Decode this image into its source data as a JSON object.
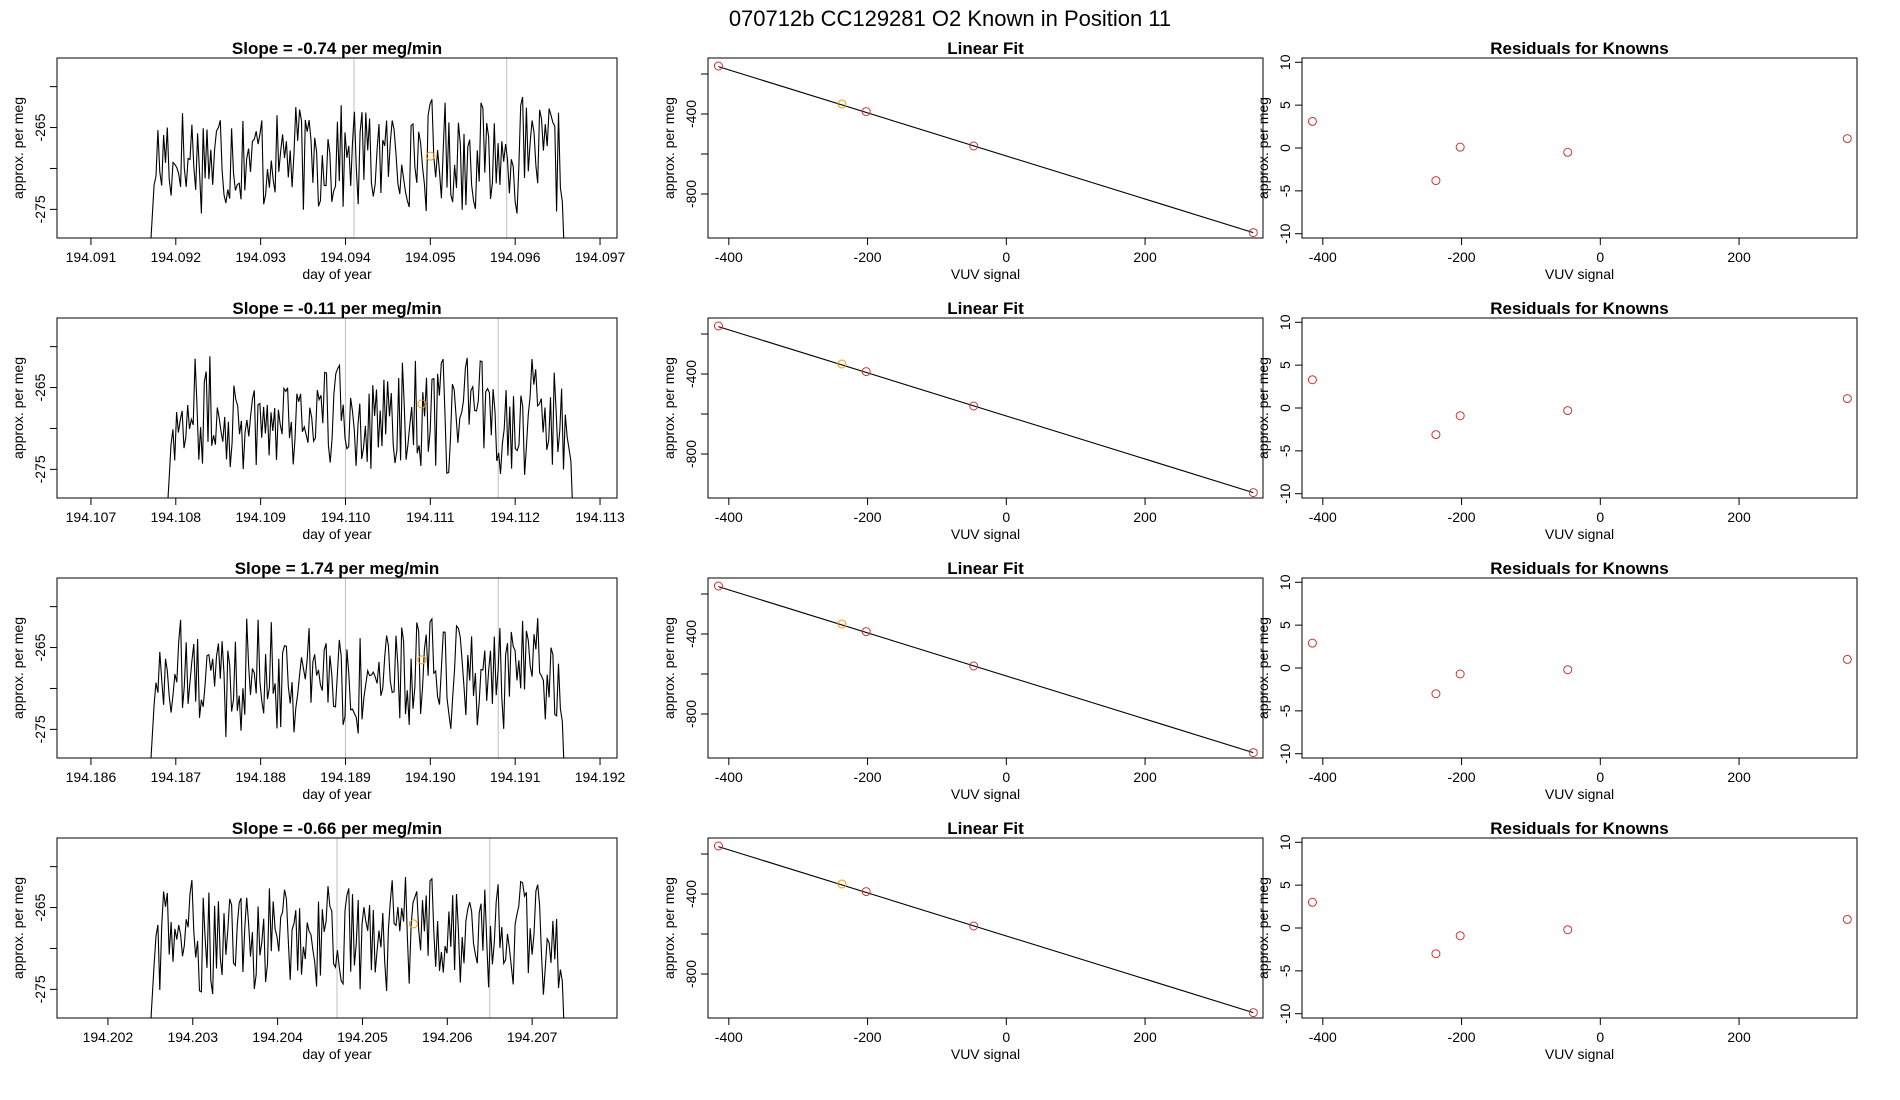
{
  "title": "070712b      CC129281    O2 Known in Position  11",
  "colors": {
    "trace": "#000000",
    "vline": "#bfbfbf",
    "highlight": "#ff9900",
    "fit_point": "#cd3333",
    "residual_point": "#cd3333"
  },
  "chart_data": [
    {
      "type": "line",
      "row": 1,
      "title": "Slope =  -0.74  per meg/min",
      "xlabel": "day of year",
      "ylabel": "approx. per meg",
      "xlim": [
        194.0906,
        194.0972
      ],
      "ylim": [
        -278.5,
        -256.5
      ],
      "xticks": [
        "194.091",
        "194.092",
        "194.093",
        "194.094",
        "194.095",
        "194.096",
        "194.097"
      ],
      "xtick_values": [
        194.091,
        194.092,
        194.093,
        194.094,
        194.095,
        194.096,
        194.097
      ],
      "yticks": [
        "-275",
        "-265"
      ],
      "ytick_values": [
        -275,
        -265
      ],
      "vlines": [
        194.0941,
        194.0959
      ],
      "highlight_point": {
        "x": 194.095,
        "y": -268.5
      },
      "series_start": 194.0917,
      "series_end": 194.0966
    },
    {
      "type": "line",
      "row": 1,
      "title": "Linear Fit",
      "xlabel": "VUV signal",
      "ylabel": "approx. per meg",
      "xlim": [
        -430,
        370
      ],
      "ylim": [
        -1020,
        -120
      ],
      "xticks": [
        "-400",
        "-200",
        "0",
        "200"
      ],
      "xtick_values": [
        -400,
        -200,
        0,
        200
      ],
      "yticks": [
        "-800",
        "-400"
      ],
      "ytick_values": [
        -800,
        -400
      ],
      "points": [
        {
          "x": -415,
          "y": -160
        },
        {
          "x": -237,
          "y": -350,
          "highlight": true
        },
        {
          "x": -202,
          "y": -388
        },
        {
          "x": -47,
          "y": -560
        },
        {
          "x": 356,
          "y": -993
        }
      ],
      "fit_line": [
        [
          -415,
          -163
        ],
        [
          356,
          -993
        ]
      ]
    },
    {
      "type": "scatter",
      "row": 1,
      "title": "Residuals for Knowns",
      "xlabel": "VUV signal",
      "ylabel": "approx. per meg",
      "xlim": [
        -430,
        370
      ],
      "ylim": [
        -10.5,
        10.5
      ],
      "xticks": [
        "-400",
        "-200",
        "0",
        "200"
      ],
      "xtick_values": [
        -400,
        -200,
        0,
        200
      ],
      "yticks": [
        "-10",
        "-5",
        "0",
        "5",
        "10"
      ],
      "ytick_values": [
        -10,
        -5,
        0,
        5,
        10
      ],
      "points": [
        {
          "x": -415,
          "y": 3.1
        },
        {
          "x": -237,
          "y": -3.8
        },
        {
          "x": -202,
          "y": 0.1
        },
        {
          "x": -47,
          "y": -0.5
        },
        {
          "x": 356,
          "y": 1.1
        }
      ]
    },
    {
      "type": "line",
      "row": 2,
      "title": "Slope =  -0.11  per meg/min",
      "xlabel": "day of year",
      "ylabel": "approx. per meg",
      "xlim": [
        194.1066,
        194.1132
      ],
      "ylim": [
        -278.5,
        -256.5
      ],
      "xticks": [
        "194.107",
        "194.108",
        "194.109",
        "194.110",
        "194.111",
        "194.112",
        "194.113"
      ],
      "xtick_values": [
        194.107,
        194.108,
        194.109,
        194.11,
        194.111,
        194.112,
        194.113
      ],
      "yticks": [
        "-275",
        "-265"
      ],
      "ytick_values": [
        -275,
        -265
      ],
      "vlines": [
        194.11,
        194.1118
      ],
      "highlight_point": {
        "x": 194.1109,
        "y": -267
      },
      "series_start": 194.1079,
      "series_end": 194.1127
    },
    {
      "type": "line",
      "row": 2,
      "title": "Linear Fit",
      "xlabel": "VUV signal",
      "ylabel": "approx. per meg",
      "xlim": [
        -430,
        370
      ],
      "ylim": [
        -1020,
        -120
      ],
      "xticks": [
        "-400",
        "-200",
        "0",
        "200"
      ],
      "xtick_values": [
        -400,
        -200,
        0,
        200
      ],
      "yticks": [
        "-800",
        "-400"
      ],
      "ytick_values": [
        -800,
        -400
      ],
      "points": [
        {
          "x": -415,
          "y": -160
        },
        {
          "x": -237,
          "y": -350,
          "highlight": true
        },
        {
          "x": -202,
          "y": -388
        },
        {
          "x": -47,
          "y": -560
        },
        {
          "x": 356,
          "y": -993
        }
      ],
      "fit_line": [
        [
          -415,
          -163
        ],
        [
          356,
          -993
        ]
      ]
    },
    {
      "type": "scatter",
      "row": 2,
      "title": "Residuals for Knowns",
      "xlabel": "VUV signal",
      "ylabel": "approx. per meg",
      "xlim": [
        -430,
        370
      ],
      "ylim": [
        -10.5,
        10.5
      ],
      "xticks": [
        "-400",
        "-200",
        "0",
        "200"
      ],
      "xtick_values": [
        -400,
        -200,
        0,
        200
      ],
      "yticks": [
        "-10",
        "-5",
        "0",
        "5",
        "10"
      ],
      "ytick_values": [
        -10,
        -5,
        0,
        5,
        10
      ],
      "points": [
        {
          "x": -415,
          "y": 3.3
        },
        {
          "x": -237,
          "y": -3.1
        },
        {
          "x": -202,
          "y": -0.9
        },
        {
          "x": -47,
          "y": -0.3
        },
        {
          "x": 356,
          "y": 1.1
        }
      ]
    },
    {
      "type": "line",
      "row": 3,
      "title": "Slope =  1.74  per meg/min",
      "xlabel": "day of year",
      "ylabel": "approx. per meg",
      "xlim": [
        194.1856,
        194.1922
      ],
      "ylim": [
        -278.5,
        -256.5
      ],
      "xticks": [
        "194.186",
        "194.187",
        "194.188",
        "194.189",
        "194.190",
        "194.191",
        "194.192"
      ],
      "xtick_values": [
        194.186,
        194.187,
        194.188,
        194.189,
        194.19,
        194.191,
        194.192
      ],
      "yticks": [
        "-275",
        "-265"
      ],
      "ytick_values": [
        -275,
        -265
      ],
      "vlines": [
        194.189,
        194.1908
      ],
      "highlight_point": {
        "x": 194.1899,
        "y": -266.5
      },
      "series_start": 194.1867,
      "series_end": 194.1916
    },
    {
      "type": "line",
      "row": 3,
      "title": "Linear Fit",
      "xlabel": "VUV signal",
      "ylabel": "approx. per meg",
      "xlim": [
        -430,
        370
      ],
      "ylim": [
        -1020,
        -120
      ],
      "xticks": [
        "-400",
        "-200",
        "0",
        "200"
      ],
      "xtick_values": [
        -400,
        -200,
        0,
        200
      ],
      "yticks": [
        "-800",
        "-400"
      ],
      "ytick_values": [
        -800,
        -400
      ],
      "points": [
        {
          "x": -415,
          "y": -160
        },
        {
          "x": -237,
          "y": -350,
          "highlight": true
        },
        {
          "x": -202,
          "y": -388
        },
        {
          "x": -47,
          "y": -560
        },
        {
          "x": 356,
          "y": -993
        }
      ],
      "fit_line": [
        [
          -415,
          -163
        ],
        [
          356,
          -993
        ]
      ]
    },
    {
      "type": "scatter",
      "row": 3,
      "title": "Residuals for Knowns",
      "xlabel": "VUV signal",
      "ylabel": "approx. per meg",
      "xlim": [
        -430,
        370
      ],
      "ylim": [
        -10.5,
        10.5
      ],
      "xticks": [
        "-400",
        "-200",
        "0",
        "200"
      ],
      "xtick_values": [
        -400,
        -200,
        0,
        200
      ],
      "yticks": [
        "-10",
        "-5",
        "0",
        "5",
        "10"
      ],
      "ytick_values": [
        -10,
        -5,
        0,
        5,
        10
      ],
      "points": [
        {
          "x": -415,
          "y": 2.9
        },
        {
          "x": -237,
          "y": -3.0
        },
        {
          "x": -202,
          "y": -0.7
        },
        {
          "x": -47,
          "y": -0.2
        },
        {
          "x": 356,
          "y": 1.0
        }
      ]
    },
    {
      "type": "line",
      "row": 4,
      "title": "Slope =  -0.66  per meg/min",
      "xlabel": "day of year",
      "ylabel": "approx. per meg",
      "xlim": [
        194.2014,
        194.208
      ],
      "ylim": [
        -278.5,
        -256.5
      ],
      "xticks": [
        "194.202",
        "194.203",
        "194.204",
        "194.205",
        "194.206",
        "194.207"
      ],
      "xtick_values": [
        194.202,
        194.203,
        194.204,
        194.205,
        194.206,
        194.207
      ],
      "yticks": [
        "-275",
        "-265"
      ],
      "ytick_values": [
        -275,
        -265
      ],
      "vlines": [
        194.2047,
        194.2065
      ],
      "highlight_point": {
        "x": 194.2056,
        "y": -267
      },
      "series_start": 194.2025,
      "series_end": 194.2074
    },
    {
      "type": "line",
      "row": 4,
      "title": "Linear Fit",
      "xlabel": "VUV signal",
      "ylabel": "approx. per meg",
      "xlim": [
        -430,
        370
      ],
      "ylim": [
        -1020,
        -120
      ],
      "xticks": [
        "-400",
        "-200",
        "0",
        "200"
      ],
      "xtick_values": [
        -400,
        -200,
        0,
        200
      ],
      "yticks": [
        "-800",
        "-400"
      ],
      "ytick_values": [
        -800,
        -400
      ],
      "points": [
        {
          "x": -415,
          "y": -160
        },
        {
          "x": -237,
          "y": -350,
          "highlight": true
        },
        {
          "x": -202,
          "y": -388
        },
        {
          "x": -47,
          "y": -560
        },
        {
          "x": 356,
          "y": -993
        }
      ],
      "fit_line": [
        [
          -415,
          -163
        ],
        [
          356,
          -993
        ]
      ]
    },
    {
      "type": "scatter",
      "row": 4,
      "title": "Residuals for Knowns",
      "xlabel": "VUV signal",
      "ylabel": "approx. per meg",
      "xlim": [
        -430,
        370
      ],
      "ylim": [
        -10.5,
        10.5
      ],
      "xticks": [
        "-400",
        "-200",
        "0",
        "200"
      ],
      "xtick_values": [
        -400,
        -200,
        0,
        200
      ],
      "yticks": [
        "-10",
        "-5",
        "0",
        "5",
        "10"
      ],
      "ytick_values": [
        -10,
        -5,
        0,
        5,
        10
      ],
      "points": [
        {
          "x": -415,
          "y": 3.0
        },
        {
          "x": -237,
          "y": -3.0
        },
        {
          "x": -202,
          "y": -0.9
        },
        {
          "x": -47,
          "y": -0.2
        },
        {
          "x": 356,
          "y": 1.0
        }
      ]
    }
  ]
}
